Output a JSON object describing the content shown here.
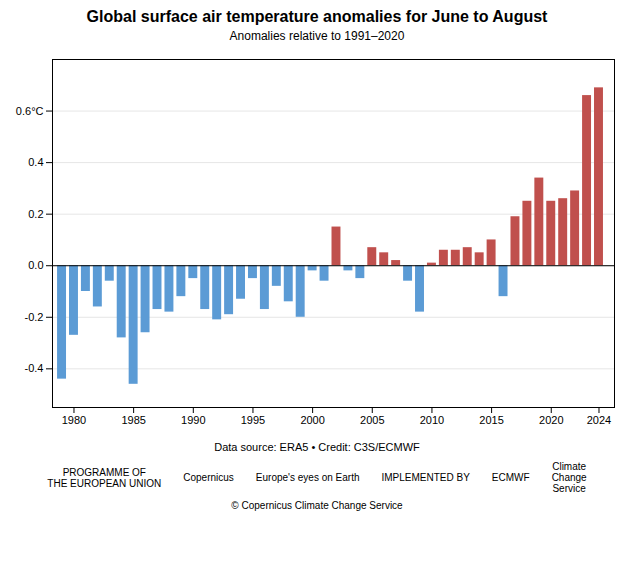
{
  "chart_data": {
    "type": "bar",
    "title": "Global surface air temperature anomalies for June to August",
    "subtitle": "Anomalies relative to 1991–2020",
    "caption": "Data source: ERA5 • Credit: C3S/ECMWF",
    "annotations": [
      "PROGRAMME OF\nTHE EUROPEAN UNION",
      "Copernicus",
      "Europe's eyes on Earth",
      "IMPLEMENTED BY",
      "ECMWF",
      "Climate\nChange\nService",
      "© Copernicus Climate Change Service"
    ],
    "x": [
      1979,
      1980,
      1981,
      1982,
      1983,
      1984,
      1985,
      1986,
      1987,
      1988,
      1989,
      1990,
      1991,
      1992,
      1993,
      1994,
      1995,
      1996,
      1997,
      1998,
      1999,
      2000,
      2001,
      2002,
      2003,
      2004,
      2005,
      2006,
      2007,
      2008,
      2009,
      2010,
      2011,
      2012,
      2013,
      2014,
      2015,
      2016,
      2017,
      2018,
      2019,
      2020,
      2021,
      2022,
      2023,
      2024
    ],
    "values": [
      -0.44,
      -0.27,
      -0.1,
      -0.16,
      -0.06,
      -0.28,
      -0.46,
      -0.26,
      -0.17,
      -0.18,
      -0.12,
      -0.05,
      -0.17,
      -0.21,
      -0.19,
      -0.13,
      -0.05,
      -0.17,
      -0.08,
      -0.14,
      -0.2,
      -0.02,
      -0.06,
      0.15,
      -0.02,
      -0.05,
      0.07,
      0.05,
      0.02,
      -0.06,
      -0.18,
      0.01,
      0.06,
      0.06,
      0.07,
      0.05,
      0.1,
      -0.12,
      0.19,
      0.25,
      0.34,
      0.25,
      0.26,
      0.29,
      0.66,
      0.69
    ],
    "colors": [
      "#5b9bd5",
      "#5b9bd5",
      "#5b9bd5",
      "#5b9bd5",
      "#5b9bd5",
      "#5b9bd5",
      "#5b9bd5",
      "#5b9bd5",
      "#5b9bd5",
      "#5b9bd5",
      "#5b9bd5",
      "#5b9bd5",
      "#5b9bd5",
      "#5b9bd5",
      "#5b9bd5",
      "#5b9bd5",
      "#5b9bd5",
      "#5b9bd5",
      "#5b9bd5",
      "#5b9bd5",
      "#5b9bd5",
      "#5b9bd5",
      "#5b9bd5",
      "#c0504d",
      "#5b9bd5",
      "#5b9bd5",
      "#c0504d",
      "#c0504d",
      "#c0504d",
      "#5b9bd5",
      "#5b9bd5",
      "#c0504d",
      "#c0504d",
      "#c0504d",
      "#c0504d",
      "#c0504d",
      "#c0504d",
      "#5b9bd5",
      "#c0504d",
      "#c0504d",
      "#c0504d",
      "#c0504d",
      "#c0504d",
      "#c0504d",
      "#c0504d",
      "#c0504d"
    ],
    "xlim": [
      1978.2,
      2025.3
    ],
    "xticks": [
      1980,
      1985,
      1990,
      1995,
      2000,
      2005,
      2010,
      2015,
      2020,
      2024
    ],
    "ylim": [
      -0.55,
      0.8
    ],
    "yticks": [
      -0.4,
      -0.2,
      {
        "value": 0.0,
        "label": "0.0"
      },
      0.2,
      0.4,
      {
        "value": 0.6,
        "label": "0.6°C"
      }
    ],
    "grid": true
  }
}
